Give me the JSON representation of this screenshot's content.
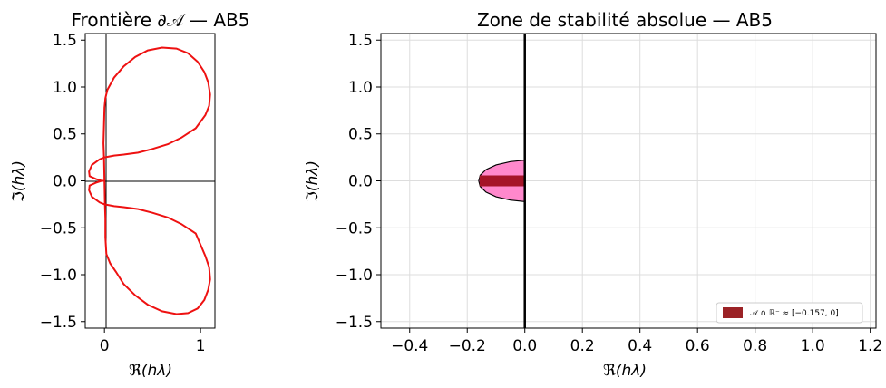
{
  "chart_data": [
    {
      "type": "line",
      "title": "Frontière ∂𝒜 — AB5",
      "xlabel": "ℜ(hλ)",
      "ylabel": "ℑ(hλ)",
      "xlim": [
        -0.2,
        1.15
      ],
      "ylim": [
        -1.57,
        1.57
      ],
      "xticks": [
        0,
        1
      ],
      "xtick_labels": [
        "0",
        "1"
      ],
      "yticks": [
        1.5,
        1.0,
        0.5,
        0.0,
        -0.5,
        -1.0,
        -1.5
      ],
      "ytick_labels": [
        "1.5",
        "1.0",
        "0.5",
        "0.0",
        "−0.5",
        "−1.0",
        "−1.5"
      ],
      "grid": false,
      "reference_lines": {
        "x": 0,
        "y": 0
      },
      "series": [
        {
          "color": "#ee1111",
          "x": [
            0.0,
            0.005,
            -0.03,
            -0.09,
            -0.155,
            -0.16,
            -0.13,
            -0.05,
            0.0,
            0.1,
            0.2,
            0.35,
            0.5,
            0.66,
            0.8,
            0.95,
            1.05,
            1.09,
            1.1,
            1.08,
            1.04,
            0.97,
            0.87,
            0.75,
            0.6,
            0.45,
            0.32,
            0.2,
            0.1,
            0.03,
            0.01,
            0.0,
            -0.005,
            -0.01,
            -0.005,
            0.0,
            0.005,
            0.01,
            0.01,
            0.02,
            0.06,
            0.12,
            0.2,
            0.32,
            0.45,
            0.6,
            0.75,
            0.87,
            0.97,
            1.04,
            1.08,
            1.1,
            1.09,
            1.05,
            0.95,
            0.8,
            0.66,
            0.5,
            0.35,
            0.2,
            0.1,
            0.0,
            -0.05,
            -0.13,
            -0.16,
            -0.155,
            -0.09,
            -0.03,
            0.005,
            0.0
          ],
          "y": [
            0.0,
            0.0,
            0.0,
            0.02,
            0.05,
            0.1,
            0.17,
            0.23,
            0.25,
            0.27,
            0.28,
            0.3,
            0.34,
            0.39,
            0.46,
            0.56,
            0.7,
            0.8,
            0.92,
            1.05,
            1.16,
            1.27,
            1.36,
            1.41,
            1.42,
            1.39,
            1.32,
            1.22,
            1.1,
            0.97,
            0.88,
            0.78,
            0.6,
            0.4,
            0.25,
            0.0,
            -0.25,
            -0.4,
            -0.6,
            -0.78,
            -0.88,
            -0.97,
            -1.1,
            -1.22,
            -1.32,
            -1.39,
            -1.42,
            -1.41,
            -1.36,
            -1.27,
            -1.16,
            -1.05,
            -0.92,
            -0.8,
            -0.56,
            -0.46,
            -0.39,
            -0.34,
            -0.3,
            -0.28,
            -0.27,
            -0.25,
            -0.23,
            -0.17,
            -0.1,
            -0.05,
            -0.02,
            0.0,
            0.0,
            0.0
          ]
        }
      ]
    },
    {
      "type": "area",
      "title": "Zone de stabilité absolue — AB5",
      "xlabel": "ℜ(hλ)",
      "ylabel": "ℑ(hλ)",
      "xlim": [
        -0.5,
        1.22
      ],
      "ylim": [
        -1.57,
        1.57
      ],
      "xticks": [
        -0.4,
        -0.2,
        0.0,
        0.2,
        0.4,
        0.6,
        0.8,
        1.0,
        1.2
      ],
      "xtick_labels": [
        "−0.4",
        "−0.2",
        "0.0",
        "0.2",
        "0.4",
        "0.6",
        "0.8",
        "1.0",
        "1.2"
      ],
      "yticks": [
        1.5,
        1.0,
        0.5,
        0.0,
        -0.5,
        -1.0,
        -1.5
      ],
      "ytick_labels": [
        "1.5",
        "1.0",
        "0.5",
        "0.0",
        "−0.5",
        "−1.0",
        "−1.5"
      ],
      "grid": true,
      "reference_lines": {
        "x": 0
      },
      "region": {
        "fill": "#ff88cc",
        "edge": "#000000",
        "x": [
          0.0,
          -0.05,
          -0.1,
          -0.135,
          -0.155,
          -0.16,
          -0.155,
          -0.135,
          -0.1,
          -0.05,
          0.0
        ],
        "y": [
          0.22,
          0.205,
          0.17,
          0.12,
          0.06,
          0.0,
          -0.06,
          -0.12,
          -0.17,
          -0.205,
          -0.22
        ]
      },
      "interval": {
        "x": [
          -0.157,
          0.0
        ],
        "y": 0.0,
        "color": "#a51428"
      },
      "legend": {
        "placement": "lower-right",
        "entries": [
          {
            "label": "𝒜 ∩ ℝ⁻ ≈ [−0.157, 0]",
            "color": "#9b2226"
          }
        ]
      }
    }
  ]
}
